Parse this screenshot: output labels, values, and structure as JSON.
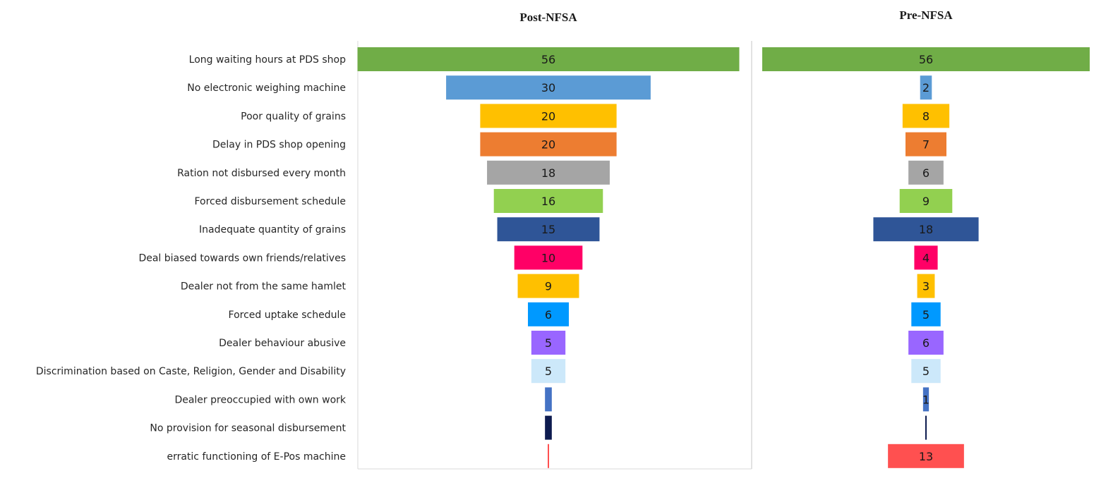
{
  "chart_data": {
    "type": "bar",
    "layout": "funnel",
    "categories": [
      "Long waiting hours at PDS shop",
      "No electronic weighing machine",
      "Poor quality of grains",
      "Delay in PDS shop opening",
      "Ration not disbursed every month",
      "Forced disbursement schedule",
      "Inadequate quantity of grains",
      "Deal biased towards own friends/relatives",
      "Dealer not from the same hamlet",
      "Forced uptake schedule",
      "Dealer behaviour abusive",
      "Discrimination based on Caste, Religion, Gender and Disability",
      "Dealer preoccupied with own work",
      "No provision for seasonal disbursement",
      "erratic functioning of E-Pos machine"
    ],
    "colors": [
      "#70ad47",
      "#5b9bd5",
      "#ffc000",
      "#ed7d31",
      "#a5a5a5",
      "#92d050",
      "#2f5597",
      "#ff0066",
      "#ffc000",
      "#0099ff",
      "#9966ff",
      "#cce8fa",
      "#4472c4",
      "#0d1b4f",
      "#ff5050"
    ],
    "series": [
      {
        "name": "Post-NFSA",
        "values": [
          56,
          30,
          20,
          20,
          18,
          16,
          15,
          10,
          9,
          6,
          5,
          5,
          1,
          1,
          0.2
        ],
        "labels": [
          "56",
          "30",
          "20",
          "20",
          "18",
          "16",
          "15",
          "10",
          "9",
          "6",
          "5",
          "5",
          "",
          "",
          ""
        ]
      },
      {
        "name": "Pre-NFSA",
        "values": [
          56,
          2,
          8,
          7,
          6,
          9,
          18,
          4,
          3,
          5,
          6,
          5,
          1,
          0.2,
          13
        ],
        "labels": [
          "56",
          "2",
          "8",
          "7",
          "6",
          "9",
          "18",
          "4",
          "3",
          "5",
          "6",
          "5",
          "1",
          "",
          "13"
        ]
      }
    ],
    "grid": false,
    "legend": "none"
  }
}
